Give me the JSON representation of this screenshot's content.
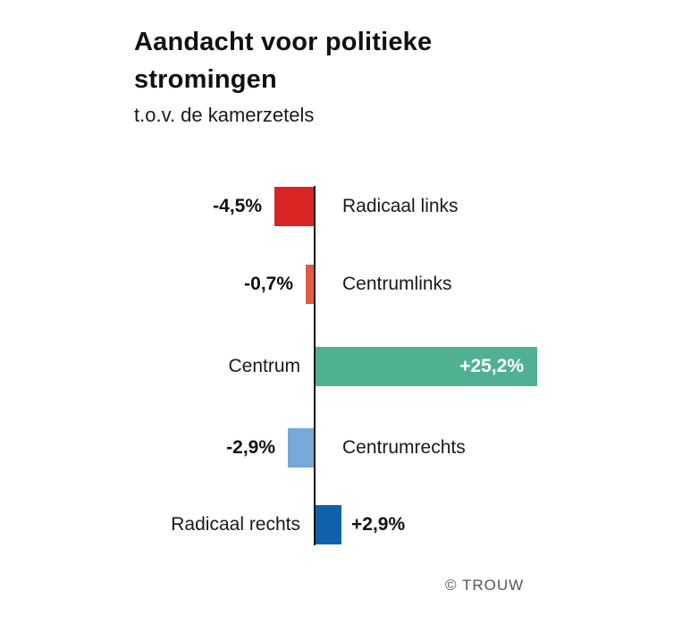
{
  "title": "Aandacht voor politieke stromingen",
  "title_lines": [
    "Aandacht voor politieke",
    "stromingen"
  ],
  "subtitle": "t.o.v. de kamerzetels",
  "credit": "© TROUW",
  "chart_data": {
    "type": "bar",
    "orientation": "horizontal-diverging",
    "title": "Aandacht voor politieke stromingen",
    "subtitle": "t.o.v. de kamerzetels",
    "xlabel": "",
    "ylabel": "",
    "unit": "%",
    "baseline_value": 0,
    "grid": false,
    "legend": false,
    "categories": [
      "Radicaal links",
      "Centrumlinks",
      "Centrum",
      "Centrumrechts",
      "Radicaal rechts"
    ],
    "values": [
      -4.5,
      -0.7,
      25.2,
      -2.9,
      2.9
    ],
    "value_labels": [
      "-4,5%",
      "-0,7%",
      "+25,2%",
      "-2,9%",
      "+2,9%"
    ],
    "colors": [
      "#da2423",
      "#e35b41",
      "#4fb191",
      "#76a9d5",
      "#1160ab"
    ],
    "value_label_inside": [
      false,
      false,
      true,
      false,
      false
    ],
    "axis_color": "#111111"
  }
}
